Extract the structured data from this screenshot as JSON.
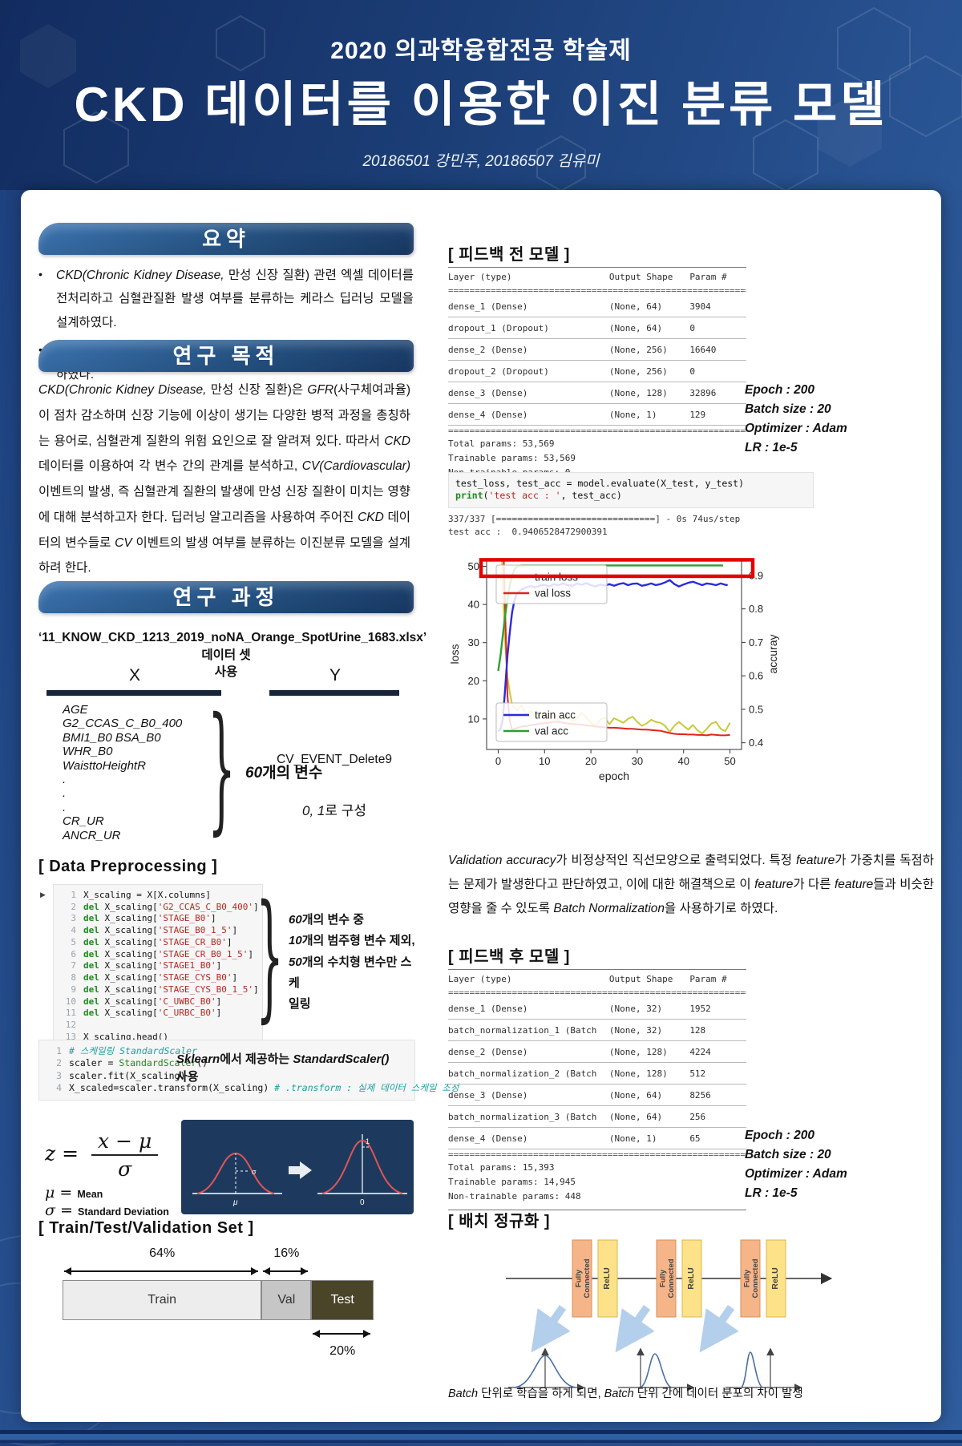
{
  "header": {
    "event": "2020 의과학융합전공 학술제",
    "title": "CKD 데이터를 이용한 이진 분류 모델",
    "authors": "20186501 강민주, 20186507 김유미"
  },
  "colors": {
    "header_bg": "#1b3d75",
    "ribbon_blue": "#24507f",
    "train_loss": "#c9c93c",
    "val_loss": "#e3231d",
    "train_acc": "#2b2bdd",
    "val_acc": "#2f9e34",
    "highlight_box": "#e60000",
    "fc_box": "#f6b489",
    "relu_box": "#fde28a",
    "split_colors": [
      "#ededed",
      "#c6c6c6",
      "#4a4429"
    ]
  },
  "icons": {
    "run_marker": "▶"
  },
  "summary": {
    "title": "요약",
    "bullets": [
      "*CKD(Chronic Kidney Disease,* 만성 신장 질환) 관련 엑셀 데이터를 전처리하고 심혈관질환 발생 여부를 분류하는 케라스 딥러닝 모델을 설계하였다.",
      "피드백을 받기 전의 모델과 후의 모델을 대조하여 *Accuracy*를 시각화 하였다."
    ]
  },
  "purpose": {
    "title": "연구 목적",
    "body": "*CKD(Chronic Kidney Disease,* 만성 신장 질환)은 *GFR*(사구체여과율)이 점차 감소하며 신장 기능에 이상이 생기는 다양한 병적 과정을 총칭하는 용어로, 심혈관계 질환의 위험 요인으로 잘 알려져 있다. 따라서 *CKD* 데이터를 이용하여 각 변수 간의 관계를 분석하고, *CV(Cardiovascular)* 이벤트의 발생, 즉 심혈관계 질환의 발생에 만성 신장 질환이 미치는 영향에 대해 분석하고자 한다. 딥러닝 알고리즘을 사용하여 주어진 *CKD* 데이터의 변수들로 *CV* 이벤트의 발생 여부를 분류하는 이진분류 모델을 설계하려 한다."
  },
  "process": {
    "title": "연구 과정",
    "dataset_line1": "‘11_KNOW_CKD_1213_2019_noNA_Orange_SpotUrine_1683.xlsx’ 데이터 셋",
    "dataset_line2": "사용",
    "x": {
      "header": "X",
      "items": [
        "AGE",
        "G2_CCAS_C_B0_400",
        "BMI1_B0 BSA_B0",
        "WHR_B0",
        "WaisttoHeightR",
        ".",
        ".",
        ".",
        "CR_UR",
        "ANCR_UR"
      ],
      "brace_label": "*60*개의 변수"
    },
    "y": {
      "header": "Y",
      "value": "CV_EVENT_Delete9",
      "note": "*0, 1*로 구성"
    }
  },
  "preprocessing": {
    "title": "[ Data Preprocessing ]",
    "code1": {
      "lines": [
        "X_scaling = X[X.columns]",
        "del X_scaling['G2_CCAS_C_B0_400']",
        "del X_scaling['STAGE_B0']",
        "del X_scaling['STAGE_B0_1_5']",
        "del X_scaling['STAGE_CR_B0']",
        "del X_scaling['STAGE_CR_B0_1_5']",
        "del X_scaling['STAGE1_B0']",
        "del X_scaling['STAGE_CYS_B0']",
        "del X_scaling['STAGE_CYS_B0_1_5']",
        "del X_scaling['C_UWBC_B0']",
        "del X_scaling['C_URBC_B0']",
        "",
        "X_scaling.head()"
      ]
    },
    "code1_note": [
      "*60*개의 변수 중",
      "*10*개의 범주형 변수 제외,",
      "*50*개의 수치형 변수만 스케",
      "일링"
    ],
    "code2": {
      "lines": [
        "# 스케일링 StandardScaler",
        "scaler = StandardScaler()",
        "scaler.fit(X_scaling)",
        "X_scaled=scaler.transform(X_scaling) # .transform : 실제 데이터 스케일 조정"
      ]
    },
    "code2_note": "*Sklearn*에서 제공하는 *StandardScaler()* 사용"
  },
  "zscore": {
    "z": "z",
    "eq": "=",
    "numerator": "x − μ",
    "denominator": "σ",
    "mu": "μ =",
    "mu_val": "Mean",
    "sigma": "σ =",
    "sigma_val": "Standard Deviation",
    "left_axis_label": "μ",
    "right_axis_label": "0",
    "sigma_mark": "σ",
    "one_mark": "1"
  },
  "split": {
    "title": "[ Train/Test/Validation  Set ]",
    "segments": [
      {
        "label": "Train",
        "pct": "64%",
        "value": 64
      },
      {
        "label": "Val",
        "pct": "16%",
        "value": 16
      },
      {
        "label": "Test",
        "pct": "20%",
        "value": 20
      }
    ]
  },
  "model_before": {
    "title": "[ 피드백 전 모델 ]",
    "headers": [
      "Layer (type)",
      "Output Shape",
      "Param #"
    ],
    "rows": [
      [
        "dense_1 (Dense)",
        "(None, 64)",
        "3904"
      ],
      [
        "dropout_1 (Dropout)",
        "(None, 64)",
        "0"
      ],
      [
        "dense_2 (Dense)",
        "(None, 256)",
        "16640"
      ],
      [
        "dropout_2 (Dropout)",
        "(None, 256)",
        "0"
      ],
      [
        "dense_3 (Dense)",
        "(None, 128)",
        "32896"
      ],
      [
        "dense_4 (Dense)",
        "(None, 1)",
        "129"
      ]
    ],
    "totals": [
      "Total params: 53,569",
      "Trainable params: 53,569",
      "Non-trainable params: 0"
    ],
    "hyper": [
      "Epoch : 200",
      "Batch size : 20",
      "Optimizer : Adam",
      "LR : 1e-5"
    ]
  },
  "eval": {
    "code": [
      "test_loss, test_acc = model.evaluate(X_test, y_test)",
      "print('test acc : ', test_acc)"
    ],
    "output": [
      "337/337 [==============================] - 0s 74us/step",
      "test acc :  0.9406528472900391"
    ]
  },
  "chart_data": {
    "type": "line",
    "xlabel": "epoch",
    "ylabel_left": "loss",
    "ylabel_right": "accuray",
    "x_ticks": [
      0,
      10,
      20,
      30,
      40,
      50
    ],
    "left_ticks": [
      10,
      20,
      30,
      40,
      50
    ],
    "right_ticks": [
      0.4,
      0.5,
      0.6,
      0.7,
      0.8,
      0.9
    ],
    "xlim": [
      -2.5,
      52.5
    ],
    "ylim_left": [
      2,
      52
    ],
    "ylim_right": [
      0.38,
      0.95
    ],
    "legend_loss": [
      "train loss",
      "val loss"
    ],
    "legend_acc": [
      "train acc",
      "val acc"
    ],
    "highlight": {
      "color": "#e60000",
      "y_left_range": [
        47.4,
        51.7
      ]
    },
    "series": [
      {
        "name": "train loss",
        "axis": "left",
        "color": "#c9c93c",
        "points": [
          [
            0.3,
            52
          ],
          [
            0.8,
            52
          ],
          [
            1,
            44
          ],
          [
            1.5,
            30
          ],
          [
            2,
            21
          ],
          [
            2.5,
            17
          ],
          [
            3,
            13.8
          ],
          [
            4,
            12.2
          ],
          [
            5,
            13.6
          ],
          [
            6,
            11.2
          ],
          [
            7,
            12.0
          ],
          [
            8,
            10.6
          ],
          [
            9,
            11.4
          ],
          [
            10,
            11.2
          ],
          [
            11,
            10.2
          ],
          [
            12,
            11.3
          ],
          [
            13,
            9.6
          ],
          [
            14,
            10.3
          ],
          [
            15,
            10.8
          ],
          [
            16,
            9.2
          ],
          [
            17,
            10.1
          ],
          [
            18,
            11.6
          ],
          [
            19,
            10.4
          ],
          [
            20,
            9.0
          ],
          [
            21,
            8.2
          ],
          [
            22,
            9.8
          ],
          [
            23,
            10.4
          ],
          [
            24,
            8.6
          ],
          [
            25,
            10.2
          ],
          [
            26,
            9.6
          ],
          [
            27,
            9.0
          ],
          [
            28,
            10.0
          ],
          [
            29,
            10.6
          ],
          [
            30,
            9.2
          ],
          [
            31,
            8.2
          ],
          [
            32,
            8.8
          ],
          [
            33,
            9.8
          ],
          [
            34,
            9.2
          ],
          [
            35,
            9.0
          ],
          [
            36,
            8.2
          ],
          [
            37,
            6.6
          ],
          [
            38,
            8.2
          ],
          [
            39,
            9.2
          ],
          [
            40,
            8.2
          ],
          [
            41,
            7.2
          ],
          [
            42,
            8.4
          ],
          [
            43,
            7.0
          ],
          [
            44,
            6.2
          ],
          [
            45,
            7.4
          ],
          [
            46,
            8.8
          ],
          [
            47,
            9.2
          ],
          [
            48,
            7.4
          ],
          [
            49,
            6.8
          ],
          [
            50,
            9.0
          ]
        ]
      },
      {
        "name": "val loss",
        "axis": "left",
        "color": "#e3231d",
        "points": [
          [
            1.2,
            52
          ],
          [
            1.6,
            34
          ],
          [
            2,
            16
          ],
          [
            2.5,
            9.5
          ],
          [
            3,
            7.2
          ],
          [
            4,
            7.6
          ],
          [
            5,
            8.0
          ],
          [
            6,
            8.1
          ],
          [
            7,
            8.4
          ],
          [
            8,
            8.5
          ],
          [
            9,
            8.8
          ],
          [
            10,
            8.9
          ],
          [
            11,
            9.0
          ],
          [
            12,
            9.3
          ],
          [
            13,
            9.2
          ],
          [
            14,
            9.0
          ],
          [
            15,
            8.8
          ],
          [
            16,
            8.7
          ],
          [
            17,
            8.6
          ],
          [
            18,
            8.5
          ],
          [
            19,
            8.3
          ],
          [
            20,
            8.2
          ],
          [
            21,
            8.0
          ],
          [
            22,
            7.9
          ],
          [
            23,
            7.8
          ],
          [
            24,
            7.7
          ],
          [
            25,
            7.7
          ],
          [
            26,
            7.6
          ],
          [
            27,
            7.5
          ],
          [
            28,
            7.4
          ],
          [
            29,
            7.4
          ],
          [
            30,
            7.3
          ],
          [
            31,
            7.2
          ],
          [
            32,
            7.2
          ],
          [
            33,
            7.1
          ],
          [
            34,
            7.0
          ],
          [
            35,
            6.9
          ],
          [
            36,
            6.6
          ],
          [
            37,
            6.3
          ],
          [
            38,
            6.1
          ],
          [
            39,
            6.0
          ],
          [
            40,
            6.0
          ],
          [
            41,
            5.9
          ],
          [
            42,
            5.9
          ],
          [
            43,
            5.8
          ],
          [
            44,
            5.8
          ],
          [
            45,
            5.7
          ],
          [
            46,
            5.9
          ],
          [
            47,
            5.8
          ],
          [
            48,
            5.7
          ],
          [
            49,
            5.7
          ],
          [
            50,
            5.8
          ]
        ]
      },
      {
        "name": "train acc",
        "axis": "right",
        "color": "#2b2bdd",
        "points": [
          [
            0,
            0.435
          ],
          [
            0.5,
            0.44
          ],
          [
            1,
            0.47
          ],
          [
            1.5,
            0.56
          ],
          [
            2,
            0.66
          ],
          [
            2.5,
            0.73
          ],
          [
            3,
            0.79
          ],
          [
            3.5,
            0.825
          ],
          [
            4,
            0.845
          ],
          [
            5,
            0.858
          ],
          [
            6,
            0.864
          ],
          [
            7,
            0.868
          ],
          [
            8,
            0.864
          ],
          [
            9,
            0.87
          ],
          [
            10,
            0.872
          ],
          [
            11,
            0.867
          ],
          [
            12,
            0.874
          ],
          [
            13,
            0.871
          ],
          [
            14,
            0.876
          ],
          [
            15,
            0.871
          ],
          [
            16,
            0.869
          ],
          [
            17,
            0.876
          ],
          [
            18,
            0.872
          ],
          [
            19,
            0.877
          ],
          [
            20,
            0.871
          ],
          [
            21,
            0.867
          ],
          [
            22,
            0.873
          ],
          [
            23,
            0.869
          ],
          [
            24,
            0.874
          ],
          [
            25,
            0.869
          ],
          [
            26,
            0.874
          ],
          [
            27,
            0.877
          ],
          [
            28,
            0.871
          ],
          [
            29,
            0.875
          ],
          [
            30,
            0.876
          ],
          [
            31,
            0.869
          ],
          [
            32,
            0.872
          ],
          [
            33,
            0.876
          ],
          [
            34,
            0.871
          ],
          [
            35,
            0.874
          ],
          [
            36,
            0.879
          ],
          [
            37,
            0.886
          ],
          [
            38,
            0.874
          ],
          [
            39,
            0.867
          ],
          [
            40,
            0.873
          ],
          [
            41,
            0.878
          ],
          [
            42,
            0.881
          ],
          [
            43,
            0.876
          ],
          [
            44,
            0.871
          ],
          [
            45,
            0.876
          ],
          [
            46,
            0.874
          ],
          [
            47,
            0.871
          ],
          [
            48,
            0.876
          ],
          [
            49,
            0.872
          ],
          [
            49.5,
            0.871
          ]
        ]
      },
      {
        "name": "val acc",
        "axis": "right",
        "color": "#2f9e34",
        "points": [
          [
            0,
            0.615
          ],
          [
            0.5,
            0.66
          ],
          [
            1,
            0.72
          ],
          [
            1.5,
            0.78
          ],
          [
            2,
            0.83
          ],
          [
            2.5,
            0.87
          ],
          [
            3,
            0.9
          ],
          [
            3.5,
            0.918
          ],
          [
            4,
            0.926
          ],
          [
            5,
            0.93
          ],
          [
            10,
            0.93
          ],
          [
            20,
            0.93
          ],
          [
            30,
            0.93
          ],
          [
            40,
            0.93
          ],
          [
            48.5,
            0.93
          ]
        ]
      }
    ]
  },
  "feedback_text": "*Validation accuracy*가 비정상적인 직선모양으로 출력되었다. 특정 *feature*가 가중치를 독점하는 문제가 발생한다고 판단하였고, 이에 대한 해결책으로 이 *feature*가 다른 *feature*들과 비슷한 영향을 줄 수 있도록 *Batch Normalization*을 사용하기로 하였다.",
  "model_after": {
    "title": "[ 피드백 후 모델 ]",
    "headers": [
      "Layer (type)",
      "Output Shape",
      "Param #"
    ],
    "rows": [
      [
        "dense_1 (Dense)",
        "(None, 32)",
        "1952"
      ],
      [
        "batch_normalization_1 (Batch",
        "(None, 32)",
        "128"
      ],
      [
        "dense_2 (Dense)",
        "(None, 128)",
        "4224"
      ],
      [
        "batch_normalization_2 (Batch",
        "(None, 128)",
        "512"
      ],
      [
        "dense_3 (Dense)",
        "(None, 64)",
        "8256"
      ],
      [
        "batch_normalization_3 (Batch",
        "(None, 64)",
        "256"
      ],
      [
        "dense_4 (Dense)",
        "(None, 1)",
        "65"
      ]
    ],
    "totals": [
      "Total params: 15,393",
      "Trainable params: 14,945",
      "Non-trainable params: 448"
    ],
    "hyper": [
      "Epoch : 200",
      "Batch size : 20",
      "Optimizer : Adam",
      "LR : 1e-5"
    ]
  },
  "batchnorm": {
    "title": "[ 배치 정규화 ]",
    "fc_line1": "Fully",
    "fc_line2": "Connected",
    "relu_label": "ReLU",
    "caption": "*Batch* 단위로 학습을 하게 되면, *Batch* 단위 간에 데이터 분포의 차이 발생"
  }
}
